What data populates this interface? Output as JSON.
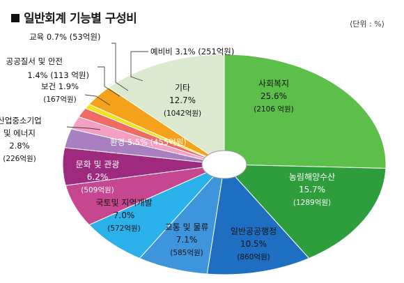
{
  "title": "일반회계 기능별 구성비",
  "unit_note": "⟨단위 : %⟩",
  "chart_data": {
    "type": "pie",
    "title": "일반회계 기능별 구성비",
    "unit": "%",
    "slices": [
      {
        "label": "사회복지",
        "percent": 25.6,
        "value_text": "25.6%",
        "amount": "(2106 억원)",
        "color": "#5cbf4a"
      },
      {
        "label": "농림해양수산",
        "percent": 15.7,
        "value_text": "15.7%",
        "amount": "(1289억원)",
        "color": "#2e9e3d"
      },
      {
        "label": "일반공공행정",
        "percent": 10.5,
        "value_text": "10.5%",
        "amount": "(860억원)",
        "color": "#1e6fc2"
      },
      {
        "label": "교통 및 물류",
        "percent": 7.1,
        "value_text": "7.1%",
        "amount": "(585억원)",
        "color": "#3f95dc"
      },
      {
        "label": "국토및 지역개발",
        "percent": 7.0,
        "value_text": "7.0%",
        "amount": "(572억원)",
        "color": "#2bb1ea"
      },
      {
        "label": "문화 및 관광",
        "percent": 6.2,
        "value_text": "6.2%",
        "amount": "(509억원)",
        "color": "#c6478f"
      },
      {
        "label": "환경",
        "percent": 5.5,
        "value_text": "5.5%",
        "amount": "(455억원)",
        "color": "#9d2a7c"
      },
      {
        "label": "산업중소기업 및 에너지",
        "percent": 2.8,
        "value_text": "2.8%",
        "amount": "(226억원)",
        "color": "#a880c0"
      },
      {
        "label": "보건",
        "percent": 1.9,
        "value_text": "1.9%",
        "amount": "(167억원)",
        "color": "#f49fc3"
      },
      {
        "label": "공공질서 및 안전",
        "percent": 1.4,
        "value_text": "1.4%",
        "amount": "(113 억원)",
        "color": "#ee6a63"
      },
      {
        "label": "교육",
        "percent": 0.7,
        "value_text": "0.7%",
        "amount": "(53억원)",
        "color": "#f2e31a"
      },
      {
        "label": "예비비",
        "percent": 3.1,
        "value_text": "3.1%",
        "amount": "(251억원)",
        "color": "#f5a21b"
      },
      {
        "label": "기타",
        "percent": 12.7,
        "value_text": "12.7%",
        "amount": "(1042억원)",
        "color": "#dde9cf"
      }
    ]
  }
}
